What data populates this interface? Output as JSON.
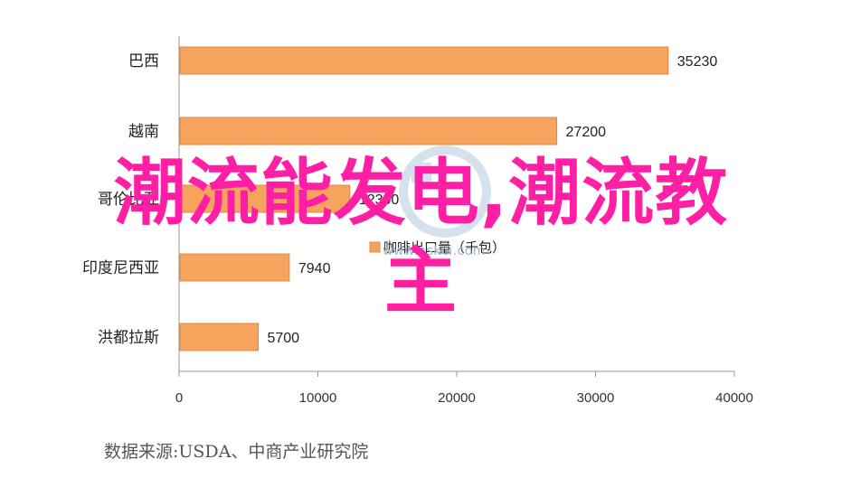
{
  "chart_data": {
    "type": "bar",
    "orientation": "horizontal",
    "categories": [
      "巴西",
      "越南",
      "哥伦比亚",
      "印度尼西亚",
      "洪都拉斯"
    ],
    "values": [
      35230,
      27200,
      12300,
      7940,
      5700
    ],
    "value_labels": [
      "35230",
      "27200",
      "12300",
      "7940",
      "5700"
    ],
    "xlim": [
      0,
      40000
    ],
    "xticks": [
      "0",
      "10000",
      "20000",
      "30000",
      "40000"
    ],
    "legend": "咖啡出口量（千包）",
    "grid": false,
    "bar_color": "#f6a35d"
  },
  "overlay_title": {
    "line1": "潮流能发电,潮流教",
    "line2": "主"
  },
  "watermark_text": "www.askci.com",
  "source_text": "数据来源:USDA、中商产业研究院"
}
